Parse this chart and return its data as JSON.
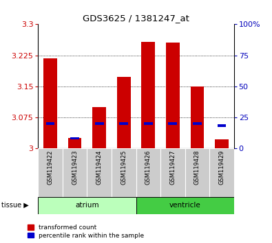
{
  "title": "GDS3625 / 1381247_at",
  "samples": [
    "GSM119422",
    "GSM119423",
    "GSM119424",
    "GSM119425",
    "GSM119426",
    "GSM119427",
    "GSM119428",
    "GSM119429"
  ],
  "red_values": [
    3.218,
    3.025,
    3.1,
    3.173,
    3.258,
    3.255,
    3.15,
    3.022
  ],
  "blue_values_pct": [
    20,
    8,
    20,
    20,
    20,
    20,
    20,
    18
  ],
  "ylim": [
    3.0,
    3.3
  ],
  "y_ticks": [
    3.0,
    3.075,
    3.15,
    3.225,
    3.3
  ],
  "y_tick_labels": [
    "3",
    "3.075",
    "3.15",
    "3.225",
    "3.3"
  ],
  "right_yticks": [
    0,
    25,
    50,
    75,
    100
  ],
  "right_ytick_labels": [
    "0",
    "25",
    "50",
    "75",
    "100%"
  ],
  "bar_width": 0.55,
  "bar_color_red": "#cc0000",
  "bar_color_blue": "#0000cc",
  "atrium_color": "#bbffbb",
  "ventricle_color": "#44cc44",
  "sample_bg": "#cccccc",
  "title_color": "#000000",
  "left_tick_color": "#cc0000",
  "right_tick_color": "#0000bb",
  "legend_red_label": "transformed count",
  "legend_blue_label": "percentile rank within the sample",
  "grid_yticks": [
    3.075,
    3.15,
    3.225
  ]
}
